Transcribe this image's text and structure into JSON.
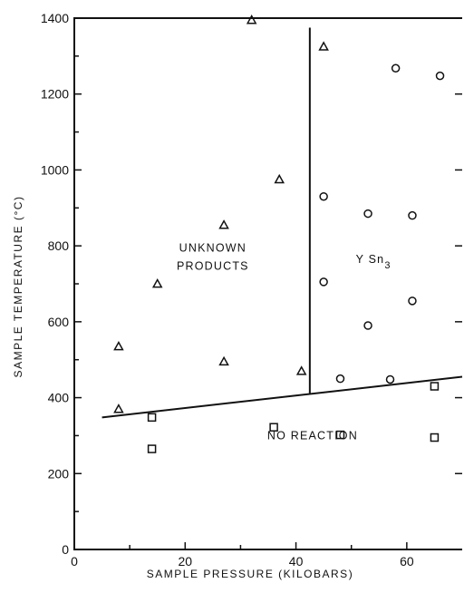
{
  "chart_data": {
    "type": "scatter",
    "title": "",
    "xlabel": "SAMPLE PRESSURE (KILOBARS)",
    "ylabel": "SAMPLE TEMPERATURE (°C)",
    "xlim": [
      0,
      70
    ],
    "ylim": [
      0,
      1400
    ],
    "xticks": [
      0,
      20,
      40,
      60
    ],
    "yticks": [
      0,
      200,
      400,
      600,
      800,
      1000,
      1200,
      1400
    ],
    "xtick_labels": [
      "0",
      "20",
      "40",
      "60"
    ],
    "ytick_labels": [
      "0",
      "200",
      "400",
      "600",
      "800",
      "1000",
      "1200",
      "1400"
    ],
    "grid": false,
    "series": [
      {
        "marker": "triangle",
        "x": [
          8,
          15,
          27,
          32,
          37,
          41,
          45,
          8,
          27
        ],
        "y": [
          535,
          700,
          855,
          1395,
          975,
          470,
          1325,
          370,
          495
        ]
      },
      {
        "marker": "circle",
        "x": [
          45,
          45,
          48,
          53,
          53,
          57,
          58,
          61,
          61,
          66
        ],
        "y": [
          930,
          705,
          450,
          885,
          590,
          448,
          1268,
          880,
          655,
          1248
        ]
      },
      {
        "marker": "square",
        "x": [
          14,
          14,
          36,
          48,
          65,
          65
        ],
        "y": [
          348,
          265,
          322,
          302,
          430,
          295
        ]
      }
    ],
    "boundaries": [
      {
        "from": [
          5,
          348
        ],
        "to": [
          70,
          455
        ]
      },
      {
        "from": [
          42.5,
          412
        ],
        "to": [
          42.5,
          1375
        ]
      }
    ],
    "annotations": [
      {
        "lines": [
          "UNKNOWN",
          "PRODUCTS"
        ],
        "x": 25,
        "y": 785
      },
      {
        "lines": [
          "Y Sn",
          "3"
        ],
        "x": 54,
        "y": 755
      },
      {
        "lines": [
          "NO REACTION"
        ],
        "x": 43,
        "y": 290
      }
    ]
  }
}
